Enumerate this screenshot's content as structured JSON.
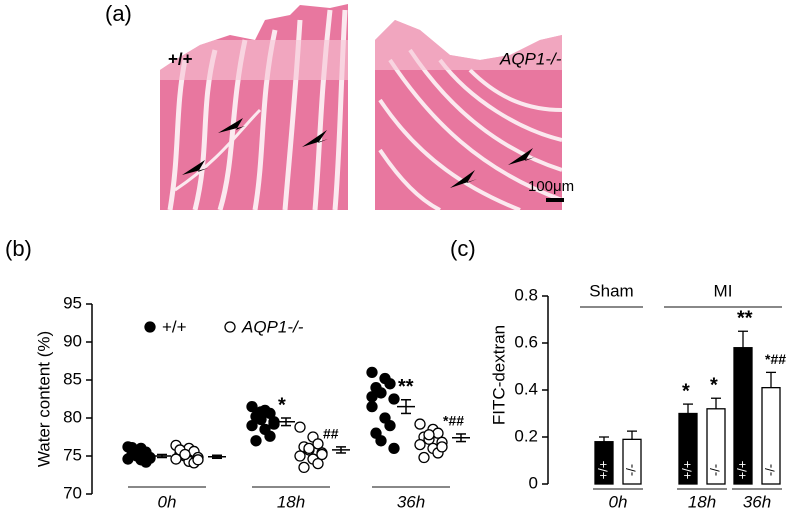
{
  "figure": {
    "panel_a": {
      "label": "(a)",
      "images": [
        {
          "label": "+/+"
        },
        {
          "label": "AQP1-/-"
        }
      ],
      "scale_bar": "100μm"
    }
  },
  "chart_data": [
    {
      "type": "dotplot",
      "panel": "(b)",
      "ylabel": "Water content (%)",
      "categories": [
        "0h",
        "18h",
        "36h"
      ],
      "ylim": [
        70,
        95
      ],
      "yticks": [
        70,
        75,
        80,
        85,
        90,
        95
      ],
      "series": [
        {
          "name": "+/+",
          "color": "#000000",
          "filled": true,
          "values": [
            [
              76.2,
              76.0,
              75.5,
              75.2,
              75.0,
              74.8,
              74.6,
              74.5,
              74.2,
              76.1,
              75.3,
              74.7
            ],
            [
              81.5,
              81.0,
              80.6,
              80.2,
              79.8,
              79.5,
              79.0,
              78.5,
              77.6,
              77.0,
              80.8,
              79.2
            ],
            [
              86.0,
              85.2,
              84.5,
              84.0,
              83.3,
              82.5,
              81.5,
              80.0,
              79.0,
              78.0,
              77.0,
              76.0,
              82.8
            ]
          ],
          "mean": [
            75.0,
            79.5,
            81.5
          ],
          "error": [
            0.2,
            0.5,
            0.9
          ],
          "annotations": [
            null,
            "*",
            "**"
          ]
        },
        {
          "name": "AQP1-/-",
          "color": "#000000",
          "filled": false,
          "values": [
            [
              76.4,
              76.0,
              75.6,
              75.3,
              75.0,
              74.8,
              74.6,
              74.3,
              74.1,
              75.8,
              75.2,
              74.5
            ],
            [
              78.8,
              77.5,
              76.6,
              76.2,
              75.8,
              75.4,
              75.0,
              74.6,
              74.0,
              73.5,
              76.0,
              75.2
            ],
            [
              79.2,
              78.5,
              78.0,
              77.5,
              77.2,
              76.8,
              76.5,
              76.0,
              75.4,
              74.8,
              77.8,
              76.2
            ]
          ],
          "mean": [
            74.9,
            75.8,
            77.4
          ],
          "error": [
            0.2,
            0.4,
            0.5
          ],
          "annotations": [
            null,
            "##",
            "*##"
          ]
        }
      ]
    },
    {
      "type": "bar",
      "panel": "(c)",
      "ylabel": "FITC-dextran",
      "categories": [
        "0h",
        "18h",
        "36h"
      ],
      "groups": [
        {
          "label": "Sham",
          "categories": [
            "0h"
          ]
        },
        {
          "label": "MI",
          "categories": [
            "18h",
            "36h"
          ]
        }
      ],
      "ylim": [
        0,
        0.8
      ],
      "yticks": [
        0,
        0.2,
        0.4,
        0.6,
        0.8
      ],
      "series": [
        {
          "name": "+/+",
          "color": "#000000",
          "values": [
            0.18,
            0.3,
            0.58
          ],
          "error": [
            0.02,
            0.04,
            0.07
          ],
          "annotations": [
            null,
            "*",
            "**"
          ]
        },
        {
          "name": "-/-",
          "color": "#ffffff",
          "values": [
            0.19,
            0.32,
            0.41
          ],
          "error": [
            0.035,
            0.045,
            0.065
          ],
          "annotations": [
            null,
            "*",
            "*##"
          ]
        }
      ]
    }
  ]
}
